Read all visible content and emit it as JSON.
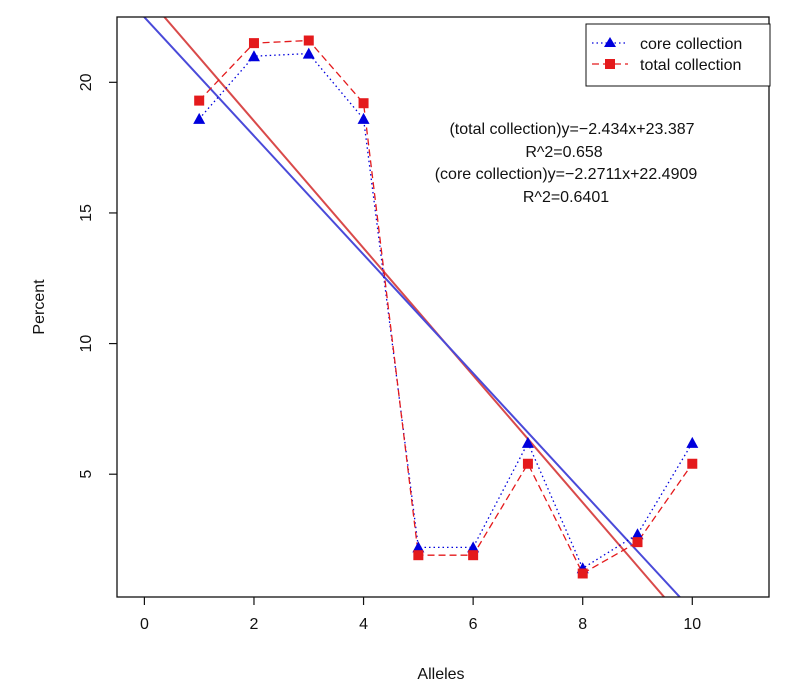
{
  "chart_data": {
    "type": "line",
    "xlabel": "Alleles",
    "ylabel": "Percent",
    "xlim": [
      -0.5,
      11.4
    ],
    "ylim": [
      0.3,
      22.5
    ],
    "x_ticks": [
      0,
      2,
      4,
      6,
      8,
      10
    ],
    "y_ticks": [
      5,
      10,
      15,
      20
    ],
    "grid": false,
    "legend_position": "top-right",
    "series": [
      {
        "name": "core collection",
        "color": "#0000dd",
        "marker": "triangle",
        "line_style": "dotted",
        "x": [
          1,
          2,
          3,
          4,
          5,
          6,
          7,
          8,
          9,
          10
        ],
        "y": [
          18.6,
          21.0,
          21.1,
          18.6,
          2.2,
          2.2,
          6.2,
          1.4,
          2.7,
          6.2
        ]
      },
      {
        "name": "total collection",
        "color": "#e41a1c",
        "marker": "square",
        "line_style": "dashed",
        "x": [
          1,
          2,
          3,
          4,
          5,
          6,
          7,
          8,
          9,
          10
        ],
        "y": [
          19.3,
          21.5,
          21.6,
          19.2,
          1.9,
          1.9,
          5.4,
          1.2,
          2.4,
          5.4
        ]
      }
    ],
    "trendlines": [
      {
        "series": "total collection",
        "slope": -2.434,
        "intercept": 23.387,
        "color": "#d94a4a"
      },
      {
        "series": "core collection",
        "slope": -2.2711,
        "intercept": 22.4909,
        "color": "#4a4ad9"
      }
    ],
    "annotations": [
      "(total collection)y=−2.434x+23.387",
      "R^2=0.658",
      "(core collection)y=−2.2711x+22.4909",
      "R^2=0.6401"
    ]
  }
}
